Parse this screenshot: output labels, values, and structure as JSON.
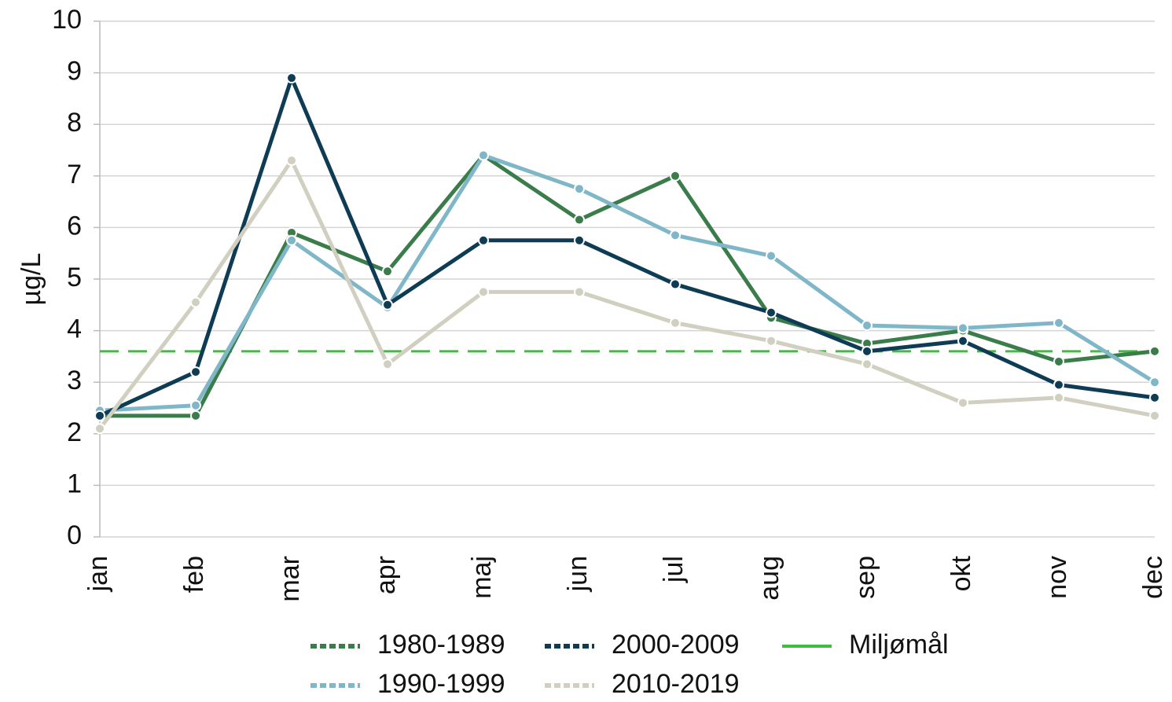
{
  "chart_data": {
    "type": "line",
    "y_label": "µg/L",
    "categories": [
      "jan",
      "feb",
      "mar",
      "apr",
      "maj",
      "jun",
      "jul",
      "aug",
      "sep",
      "okt",
      "nov",
      "dec"
    ],
    "ylim": [
      0,
      10
    ],
    "yticks": [
      0,
      1,
      2,
      3,
      4,
      5,
      6,
      7,
      8,
      9,
      10
    ],
    "grid": true,
    "series": [
      {
        "name": "1980-1989",
        "color": "#3b7c4b",
        "values": [
          2.35,
          2.35,
          5.9,
          5.15,
          7.4,
          6.15,
          7.0,
          4.25,
          3.75,
          4.0,
          3.4,
          3.6
        ]
      },
      {
        "name": "1990-1999",
        "color": "#80b7c8",
        "values": [
          2.45,
          2.55,
          5.75,
          4.45,
          7.4,
          6.75,
          5.85,
          5.45,
          4.1,
          4.05,
          4.15,
          3.0
        ]
      },
      {
        "name": "2000-2009",
        "color": "#0e3c54",
        "values": [
          2.35,
          3.2,
          8.9,
          4.5,
          5.75,
          5.75,
          4.9,
          4.35,
          3.6,
          3.8,
          2.95,
          2.7
        ]
      },
      {
        "name": "2010-2019",
        "color": "#d0cfc0",
        "values": [
          2.1,
          4.55,
          7.3,
          3.35,
          4.75,
          4.75,
          4.15,
          3.8,
          3.35,
          2.6,
          2.7,
          2.35
        ]
      },
      {
        "name": "Miljømål",
        "color": "#3cbf3c",
        "markers": false,
        "dashed": true,
        "values": [
          3.6,
          3.6,
          3.6,
          3.6,
          3.6,
          3.6,
          3.6,
          3.6,
          3.6,
          3.6,
          3.6,
          3.6
        ]
      }
    ]
  }
}
